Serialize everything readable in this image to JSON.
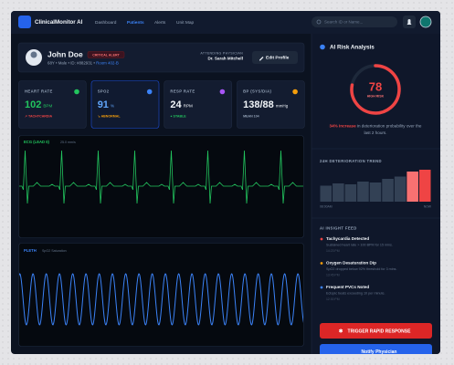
{
  "nav": {
    "brand": "ClinicalMonitor AI",
    "links": [
      "Dashboard",
      "Patients",
      "Alerts",
      "Unit Map"
    ],
    "search": "Search ID or Name..."
  },
  "patient": {
    "name": "John Doe",
    "alert": "CRITICAL ALERT",
    "details": "68Y • Male • ID: #882931 • ",
    "room": "Room 402-B",
    "physician_label": "ATTENDING PHYSICIAN",
    "physician": "Dr. Sarah Mitchell",
    "edit": "Edit Profile"
  },
  "vitals": [
    {
      "label": "HEART RATE",
      "value": "102",
      "unit": "BPM",
      "status": "↗ TACHYCARDIA"
    },
    {
      "label": "SPO2",
      "value": "91",
      "unit": "%",
      "status": "↘ ABNORMAL"
    },
    {
      "label": "RESP RATE",
      "value": "24",
      "unit": "RPM",
      "status": "● STABLE"
    },
    {
      "label": "BP (SYS/DIA)",
      "value": "138/88",
      "unit": "mmHg",
      "status": "MEAN 104"
    }
  ],
  "ecg": {
    "label": "ECG (LEAD II)",
    "speed": "25.0 mm/s"
  },
  "pleth": {
    "label": "PLETH",
    "sub": "SpO2 Saturation"
  },
  "risk": {
    "title": "AI Risk Analysis",
    "score": 78,
    "level": "HIGH RISK",
    "increase": "34% increase",
    "text1": " in deterioration probability over the",
    "text2": "last 2 hours."
  },
  "trend": {
    "title": "24H DETERIORATION TREND",
    "values": [
      35,
      40,
      38,
      44,
      42,
      50,
      55,
      66,
      70
    ],
    "start": "08:00AM",
    "end": "NOW"
  },
  "feed": {
    "title": "AI INSIGHT FEED",
    "items": [
      {
        "title": "Tachycardia Detected",
        "text": "Sustained heart rate > 100 BPM for 15 mins.",
        "time": "14:23 PM"
      },
      {
        "title": "Oxygen Desaturation Dip",
        "text": "SpO2 dropped below 92% threshold for 3 mins.",
        "time": "13:45 PM"
      },
      {
        "title": "Frequent PVCs Noted",
        "text": "Ectopic beats exceeding 10 per minute.",
        "time": "12:30 PM"
      }
    ]
  },
  "actions": {
    "primary": "TRIGGER RAPID RESPONSE",
    "secondary": "Notify Physician"
  }
}
